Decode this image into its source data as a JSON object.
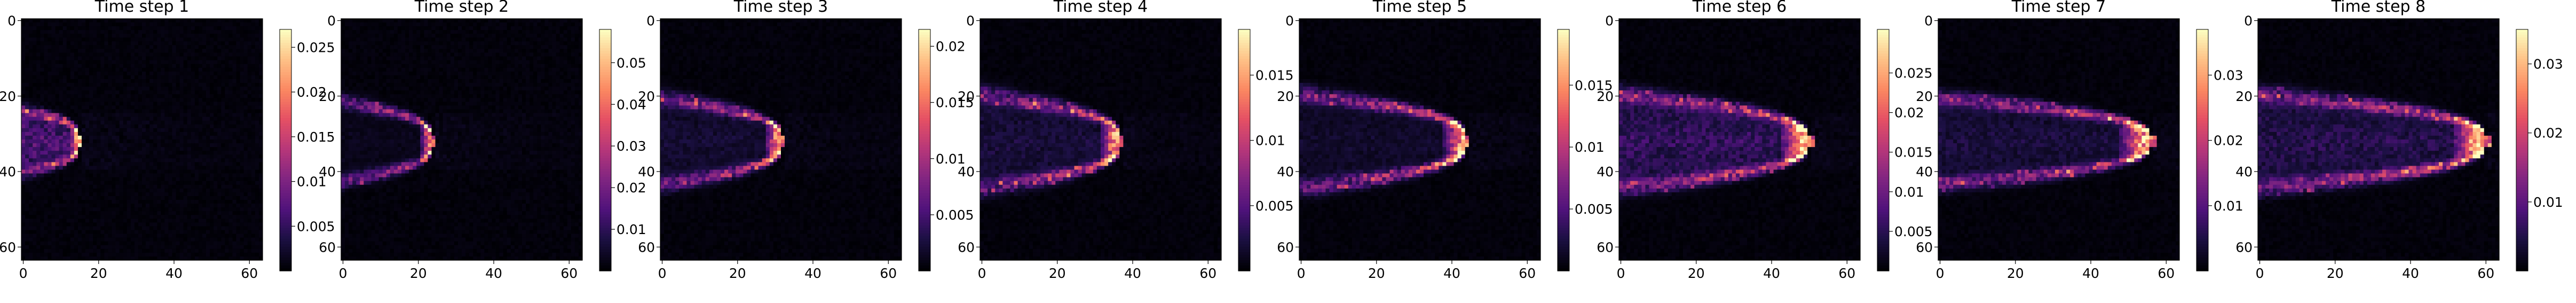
{
  "figure": {
    "colormap": "magma"
  },
  "chart_data": [
    {
      "type": "heatmap",
      "title": "Time step 1",
      "xlim": [
        0,
        63
      ],
      "ylim": [
        63,
        0
      ],
      "x_ticks": [
        0,
        20,
        40,
        60
      ],
      "y_ticks": [
        0,
        20,
        40,
        60
      ],
      "colorbar_ticks": [
        0.005,
        0.01,
        0.015,
        0.02,
        0.025
      ],
      "vmax": 0.027,
      "front_x": 15,
      "blob_halfwidth": 7,
      "body_intensity": 0.35,
      "seed": 11
    },
    {
      "type": "heatmap",
      "title": "Time step 2",
      "xlim": [
        0,
        63
      ],
      "ylim": [
        63,
        0
      ],
      "x_ticks": [
        0,
        20,
        40,
        60
      ],
      "y_ticks": [
        0,
        20,
        40,
        60
      ],
      "colorbar_ticks": [
        0.01,
        0.02,
        0.03,
        0.04,
        0.05
      ],
      "vmax": 0.058,
      "front_x": 24,
      "blob_halfwidth": 9,
      "body_intensity": 0.05,
      "seed": 23
    },
    {
      "type": "heatmap",
      "title": "Time step 3",
      "xlim": [
        0,
        63
      ],
      "ylim": [
        63,
        0
      ],
      "x_ticks": [
        0,
        20,
        40,
        60
      ],
      "y_ticks": [
        0,
        20,
        40,
        60
      ],
      "colorbar_ticks": [
        0.005,
        0.01,
        0.015,
        0.02
      ],
      "vmax": 0.0215,
      "front_x": 32,
      "blob_halfwidth": 10,
      "body_intensity": 0.12,
      "seed": 37
    },
    {
      "type": "heatmap",
      "title": "Time step 4",
      "xlim": [
        0,
        63
      ],
      "ylim": [
        63,
        0
      ],
      "x_ticks": [
        0,
        20,
        40,
        60
      ],
      "y_ticks": [
        0,
        20,
        40,
        60
      ],
      "colorbar_ticks": [
        0.005,
        0.01,
        0.015
      ],
      "vmax": 0.0185,
      "front_x": 37,
      "blob_halfwidth": 11,
      "body_intensity": 0.15,
      "seed": 41
    },
    {
      "type": "heatmap",
      "title": "Time step 5",
      "xlim": [
        0,
        63
      ],
      "ylim": [
        63,
        0
      ],
      "x_ticks": [
        0,
        20,
        40,
        60
      ],
      "y_ticks": [
        0,
        20,
        40,
        60
      ],
      "colorbar_ticks": [
        0.005,
        0.01,
        0.015
      ],
      "vmax": 0.0195,
      "front_x": 44,
      "blob_halfwidth": 11,
      "body_intensity": 0.1,
      "seed": 53
    },
    {
      "type": "heatmap",
      "title": "Time step 6",
      "xlim": [
        0,
        63
      ],
      "ylim": [
        63,
        0
      ],
      "x_ticks": [
        0,
        20,
        40,
        60
      ],
      "y_ticks": [
        0,
        20,
        40,
        60
      ],
      "colorbar_ticks": [
        0.005,
        0.01,
        0.015,
        0.02,
        0.025
      ],
      "vmax": 0.0305,
      "front_x": 50,
      "blob_halfwidth": 11,
      "body_intensity": 0.25,
      "seed": 67
    },
    {
      "type": "heatmap",
      "title": "Time step 7",
      "xlim": [
        0,
        63
      ],
      "ylim": [
        63,
        0
      ],
      "x_ticks": [
        0,
        20,
        40,
        60
      ],
      "y_ticks": [
        0,
        20,
        40,
        60
      ],
      "colorbar_ticks": [
        0.01,
        0.02,
        0.03
      ],
      "vmax": 0.037,
      "front_x": 56,
      "blob_halfwidth": 10,
      "body_intensity": 0.15,
      "seed": 71
    },
    {
      "type": "heatmap",
      "title": "Time step 8",
      "xlim": [
        0,
        63
      ],
      "ylim": [
        63,
        0
      ],
      "x_ticks": [
        0,
        20,
        40,
        60
      ],
      "y_ticks": [
        0,
        20,
        40,
        60
      ],
      "colorbar_ticks": [
        0.01,
        0.02,
        0.03
      ],
      "vmax": 0.035,
      "front_x": 60,
      "blob_halfwidth": 11,
      "body_intensity": 0.2,
      "seed": 89
    }
  ]
}
